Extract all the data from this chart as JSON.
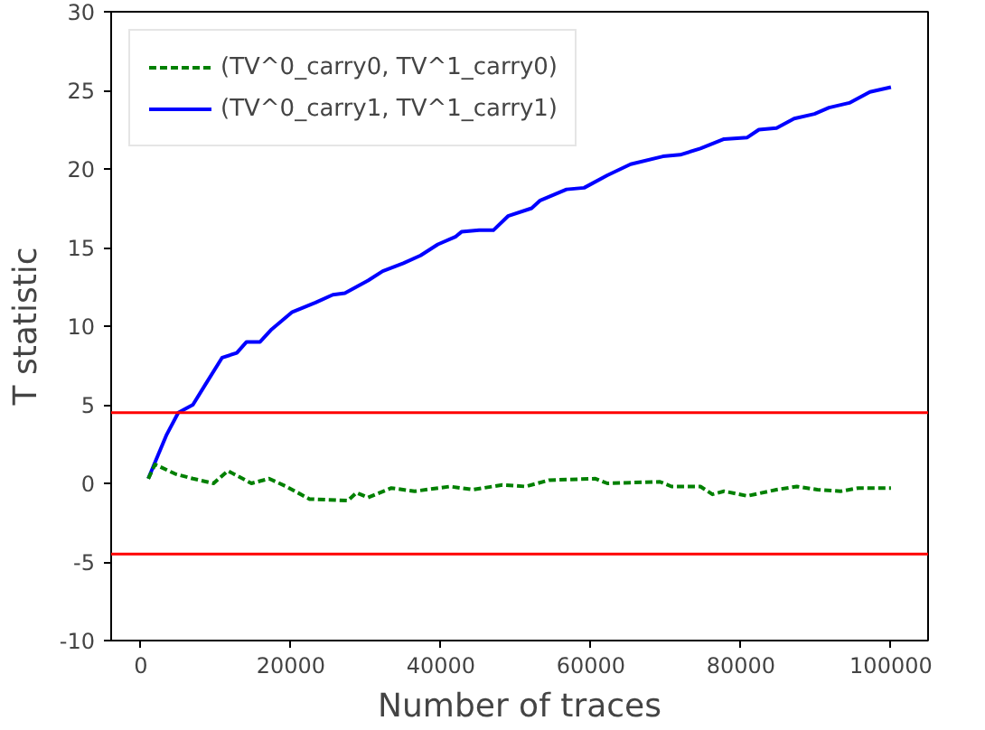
{
  "chart_data": {
    "type": "line",
    "xlabel": "Number of traces",
    "ylabel": "T statistic",
    "xlim": [
      -3950,
      104950
    ],
    "ylim": [
      -10,
      30
    ],
    "xticks": [
      0,
      20000,
      40000,
      60000,
      80000,
      100000
    ],
    "yticks": [
      -10,
      -5,
      0,
      5,
      10,
      15,
      20,
      25,
      30
    ],
    "grid": false,
    "legend": "top left",
    "series": [
      {
        "name": "(TV^0_carry0, TV^1_carry0)",
        "color": "#008000",
        "line_style": "dashed",
        "x": [
          1000,
          1900,
          4600,
          6950,
          9700,
          11600,
          14750,
          17100,
          19400,
          22500,
          27600,
          28750,
          30300,
          33400,
          36500,
          41200,
          44300,
          48200,
          51300,
          54400,
          60600,
          62200,
          69200,
          70750,
          74600,
          76200,
          77750,
          80850,
          84750,
          87450,
          90200,
          93300,
          95650,
          100000
        ],
        "values": [
          0.3,
          1.2,
          0.6,
          0.3,
          0.0,
          0.8,
          0.0,
          0.3,
          -0.2,
          -1.0,
          -1.1,
          -0.6,
          -0.9,
          -0.3,
          -0.5,
          -0.2,
          -0.4,
          -0.1,
          -0.2,
          0.2,
          0.3,
          0.0,
          0.1,
          -0.2,
          -0.2,
          -0.7,
          -0.5,
          -0.8,
          -0.4,
          -0.2,
          -0.4,
          -0.5,
          -0.3,
          -0.3
        ]
      },
      {
        "name": "(TV^0_carry1, TV^1_carry1)",
        "color": "#0000ff",
        "line_style": "solid",
        "x": [
          1000,
          2300,
          3450,
          5000,
          6950,
          8500,
          10850,
          12800,
          14100,
          15900,
          17450,
          20200,
          23300,
          25600,
          27200,
          30300,
          32250,
          35000,
          37300,
          39600,
          42000,
          42750,
          45100,
          47000,
          48950,
          52100,
          53250,
          56750,
          59100,
          62200,
          65300,
          69600,
          71900,
          74600,
          77750,
          80850,
          82400,
          84750,
          87100,
          89800,
          91750,
          94450,
          97200,
          100000
        ],
        "values": [
          0.3,
          1.8,
          3.1,
          4.5,
          5.0,
          6.2,
          8.0,
          8.3,
          9.0,
          9.0,
          9.8,
          10.9,
          11.5,
          12.0,
          12.1,
          12.9,
          13.5,
          14.0,
          14.5,
          15.2,
          15.7,
          16.0,
          16.1,
          16.1,
          17.0,
          17.5,
          18.0,
          18.7,
          18.8,
          19.6,
          20.3,
          20.8,
          20.9,
          21.3,
          21.9,
          22.0,
          22.5,
          22.6,
          23.2,
          23.5,
          23.9,
          24.2,
          24.9,
          25.2
        ]
      }
    ],
    "ref_lines": [
      {
        "axis": "y",
        "value": 4.5,
        "color": "#ff0000"
      },
      {
        "axis": "y",
        "value": -4.5,
        "color": "#ff0000"
      }
    ]
  }
}
